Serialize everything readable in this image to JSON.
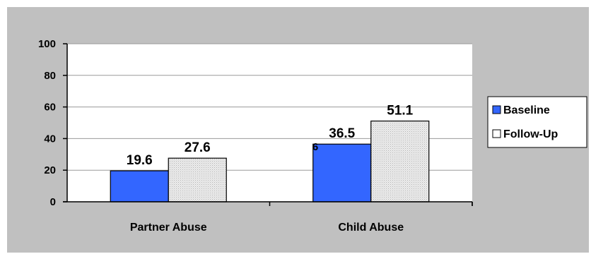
{
  "chart_data": {
    "type": "bar",
    "categories": [
      "Partner Abuse",
      "Child Abuse"
    ],
    "series": [
      {
        "name": "Baseline",
        "values": [
          19.6,
          36.5
        ],
        "color": "#3366ff"
      },
      {
        "name": "Follow-Up",
        "values": [
          27.6,
          51.1
        ],
        "color": "#e4e4e4"
      }
    ],
    "data_labels": [
      [
        "19.6",
        "27.6"
      ],
      [
        "36.5",
        "51.1"
      ]
    ],
    "stray_label": "6",
    "ylim": [
      0,
      100
    ],
    "yticks": [
      0,
      20,
      40,
      60,
      80,
      100
    ],
    "grid": true,
    "legend_position": "right",
    "background_color": "#c0c0c0",
    "plot_area_color": "#ffffff"
  }
}
